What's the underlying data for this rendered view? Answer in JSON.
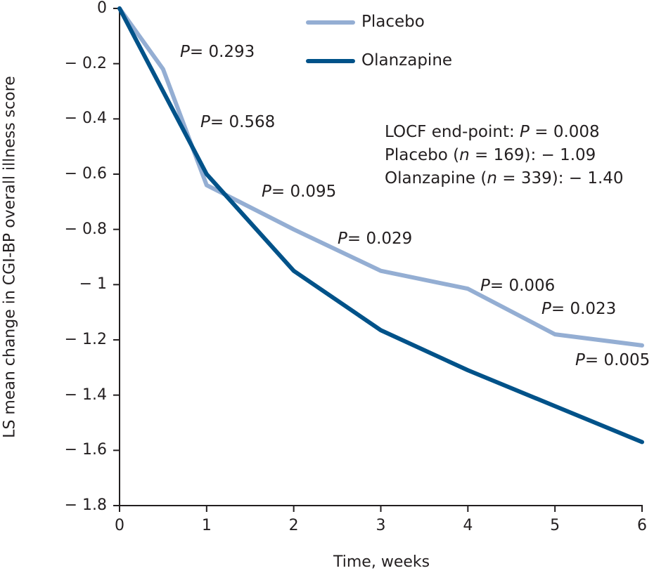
{
  "chart_data": {
    "type": "line",
    "title": "",
    "xlabel": "Time, weeks",
    "ylabel": "LS mean change in CGI-BP overall illness score",
    "xlim": [
      0,
      6
    ],
    "ylim": [
      -1.8,
      0
    ],
    "grid": false,
    "xticks": [
      "0",
      "1",
      "2",
      "3",
      "4",
      "5",
      "6"
    ],
    "yticks": [
      "0",
      "− 0.2",
      "− 0.4",
      "− 0.6",
      "− 0.8",
      "− 1",
      "− 1.2",
      "− 1.4",
      "− 1.6",
      "− 1.8"
    ],
    "ytick_values": [
      0,
      -0.2,
      -0.4,
      -0.6,
      -0.8,
      -1,
      -1.2,
      -1.4,
      -1.6,
      -1.8
    ],
    "legend_position": "top-center",
    "series": [
      {
        "name": "Placebo",
        "color": "#94aed3",
        "x": [
          0,
          0.5,
          1,
          2,
          3,
          4,
          5,
          6
        ],
        "y": [
          0,
          -0.22,
          -0.64,
          -0.8,
          -0.95,
          -1.015,
          -1.18,
          -1.22
        ]
      },
      {
        "name": "Olanzapine",
        "color": "#005289",
        "x": [
          0,
          1,
          2,
          3,
          4,
          5,
          6
        ],
        "y": [
          0,
          -0.6,
          -0.95,
          -1.165,
          -1.31,
          -1.44,
          -1.57
        ]
      }
    ],
    "annotations": [
      {
        "p": "P",
        "text": "= 0.293"
      },
      {
        "p": "P",
        "text": "= 0.568"
      },
      {
        "p": "P",
        "text": "= 0.095"
      },
      {
        "p": "P",
        "text": "= 0.029"
      },
      {
        "p": "P",
        "text": "= 0.006"
      },
      {
        "p": "P",
        "text": "= 0.023"
      },
      {
        "p": "P",
        "text": "= 0.005"
      }
    ],
    "stats": {
      "line1_a": "LOCF end-point: ",
      "line1_p": "P",
      "line1_b": " = 0.008",
      "line2_a": "Placebo (",
      "line2_n": "n",
      "line2_b": " = 169):  − 1.09",
      "line3_a": "Olanzapine (",
      "line3_n": "n",
      "line3_b": " = 339):  − 1.40"
    }
  }
}
